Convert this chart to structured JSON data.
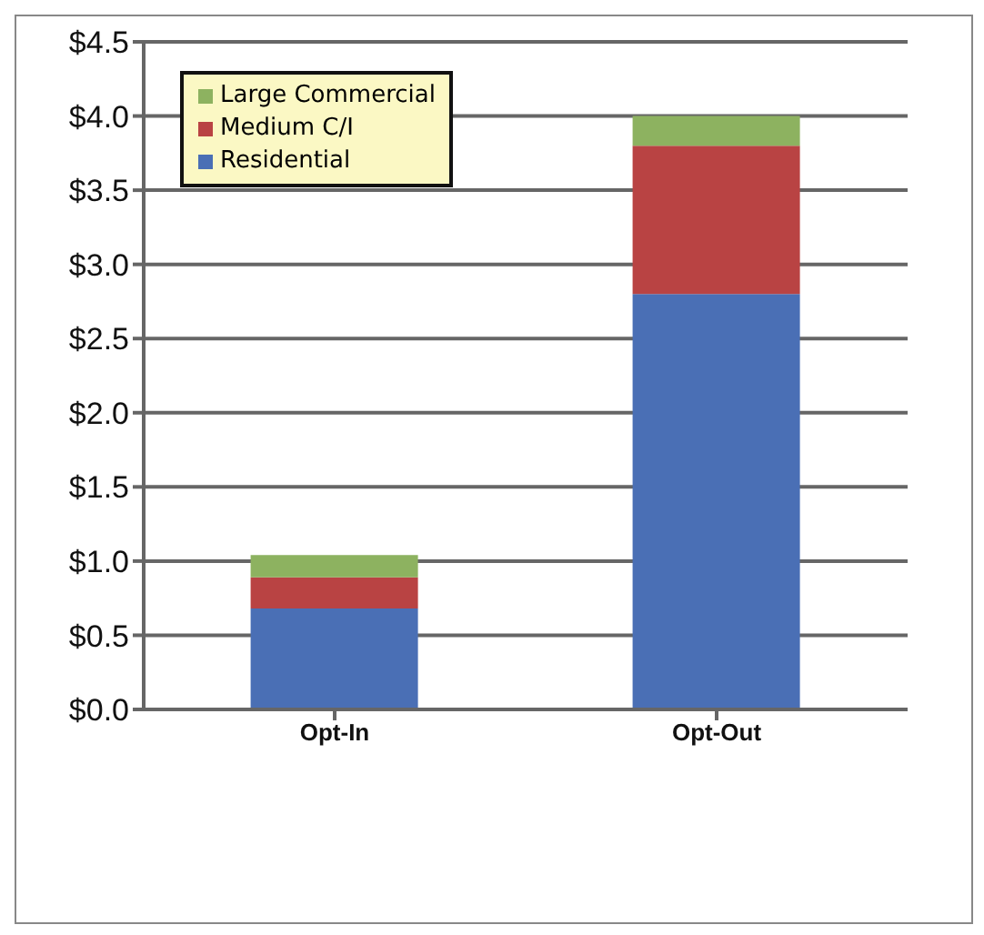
{
  "chart_data": {
    "type": "bar",
    "stacked": true,
    "categories": [
      "Opt-In",
      "Opt-Out"
    ],
    "series": [
      {
        "name": "Residential",
        "color": "#4a6fb5",
        "values": [
          0.68,
          2.8
        ]
      },
      {
        "name": "Medium C/I",
        "color": "#b94343",
        "values": [
          0.21,
          1.0
        ]
      },
      {
        "name": "Large Commercial",
        "color": "#8db260",
        "values": [
          0.15,
          0.2
        ]
      }
    ],
    "ylim": [
      0,
      4.5
    ],
    "yticks": [
      {
        "value": 0,
        "label": "$0.0"
      },
      {
        "value": 0.5,
        "label": "$0.5"
      },
      {
        "value": 1,
        "label": "$1.0"
      },
      {
        "value": 1.5,
        "label": "$1.5"
      },
      {
        "value": 2,
        "label": "$2.0"
      },
      {
        "value": 2.5,
        "label": "$2.5"
      },
      {
        "value": 3,
        "label": "$3.0"
      },
      {
        "value": 3.5,
        "label": "$3.5"
      },
      {
        "value": 4,
        "label": "$4.0"
      },
      {
        "value": 4.5,
        "label": "$4.5"
      }
    ],
    "grid": "y",
    "legend": "top left"
  }
}
